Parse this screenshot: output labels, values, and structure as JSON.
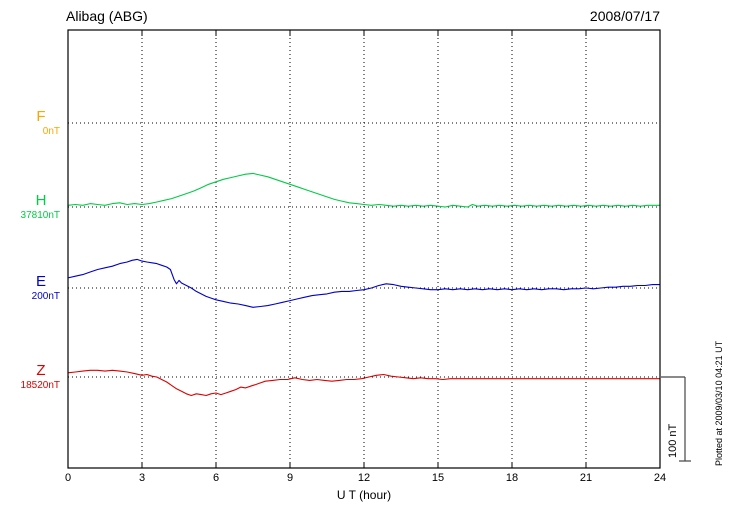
{
  "header": {
    "title": "Alibag (ABG)",
    "date": "2008/07/17"
  },
  "footer": {
    "plotted_at": "Plotted at 2009/03/10 04:21 UT"
  },
  "chart_data": {
    "type": "line",
    "title": "Alibag (ABG)",
    "date": "2008/07/17",
    "xlabel": "U T (hour)",
    "xlim": [
      0,
      24
    ],
    "x_ticks": [
      0,
      3,
      6,
      9,
      12,
      15,
      18,
      21,
      24
    ],
    "grid": "dotted",
    "scale_bar": {
      "label": "100 nT",
      "nT": 100
    },
    "unit": "nT offset from baseline",
    "series": [
      {
        "name": "F",
        "baseline_label": "0nT",
        "color": "#ffa500",
        "trace_visible": false,
        "points": []
      },
      {
        "name": "H",
        "baseline_label": "37810nT",
        "color": "#00cc44",
        "trace_visible": true,
        "points": [
          [
            0,
            2
          ],
          [
            0.3,
            3
          ],
          [
            0.6,
            2
          ],
          [
            0.9,
            4
          ],
          [
            1.2,
            3
          ],
          [
            1.5,
            2
          ],
          [
            1.8,
            4
          ],
          [
            2.1,
            5
          ],
          [
            2.4,
            3
          ],
          [
            2.7,
            4
          ],
          [
            3,
            3
          ],
          [
            3.3,
            4
          ],
          [
            3.6,
            6
          ],
          [
            3.9,
            8
          ],
          [
            4.2,
            10
          ],
          [
            4.5,
            13
          ],
          [
            4.8,
            16
          ],
          [
            5.1,
            19
          ],
          [
            5.4,
            23
          ],
          [
            5.7,
            27
          ],
          [
            6,
            30
          ],
          [
            6.3,
            33
          ],
          [
            6.6,
            35
          ],
          [
            6.9,
            37
          ],
          [
            7.2,
            39
          ],
          [
            7.5,
            40
          ],
          [
            7.8,
            38
          ],
          [
            8.1,
            36
          ],
          [
            8.4,
            33
          ],
          [
            8.7,
            30
          ],
          [
            9,
            27
          ],
          [
            9.3,
            24
          ],
          [
            9.6,
            21
          ],
          [
            9.9,
            18
          ],
          [
            10.2,
            15
          ],
          [
            10.5,
            12
          ],
          [
            10.8,
            9
          ],
          [
            11.1,
            7
          ],
          [
            11.4,
            5
          ],
          [
            11.7,
            4
          ],
          [
            12,
            3
          ],
          [
            12.3,
            2
          ],
          [
            12.6,
            3
          ],
          [
            12.9,
            2
          ],
          [
            13.2,
            1
          ],
          [
            13.5,
            2
          ],
          [
            13.8,
            1
          ],
          [
            14.1,
            2
          ],
          [
            14.4,
            1
          ],
          [
            14.7,
            2
          ],
          [
            15,
            1
          ],
          [
            15.3,
            0
          ],
          [
            15.6,
            2
          ],
          [
            15.9,
            1
          ],
          [
            16.2,
            0
          ],
          [
            16.4,
            3
          ],
          [
            16.6,
            1
          ],
          [
            16.9,
            2
          ],
          [
            17.2,
            1
          ],
          [
            17.5,
            2
          ],
          [
            17.8,
            1
          ],
          [
            18.1,
            2
          ],
          [
            18.4,
            1
          ],
          [
            18.7,
            2
          ],
          [
            19,
            1
          ],
          [
            19.3,
            2
          ],
          [
            19.6,
            1
          ],
          [
            19.9,
            2
          ],
          [
            20.2,
            1
          ],
          [
            20.5,
            2
          ],
          [
            20.8,
            1
          ],
          [
            21.1,
            2
          ],
          [
            21.4,
            1
          ],
          [
            21.7,
            2
          ],
          [
            22,
            1
          ],
          [
            22.3,
            2
          ],
          [
            22.6,
            1
          ],
          [
            22.9,
            2
          ],
          [
            23.2,
            1
          ],
          [
            23.5,
            2
          ],
          [
            23.8,
            2
          ],
          [
            24,
            2
          ]
        ]
      },
      {
        "name": "E",
        "baseline_label": "200nT",
        "color": "#0000cc",
        "trace_visible": true,
        "points": [
          [
            0,
            12
          ],
          [
            0.3,
            14
          ],
          [
            0.6,
            16
          ],
          [
            0.9,
            19
          ],
          [
            1.2,
            22
          ],
          [
            1.5,
            24
          ],
          [
            1.8,
            26
          ],
          [
            2.1,
            29
          ],
          [
            2.4,
            31
          ],
          [
            2.6,
            33
          ],
          [
            2.8,
            34
          ],
          [
            3,
            32
          ],
          [
            3.2,
            31
          ],
          [
            3.4,
            30
          ],
          [
            3.6,
            29
          ],
          [
            3.8,
            27
          ],
          [
            4,
            25
          ],
          [
            4.15,
            22
          ],
          [
            4.3,
            10
          ],
          [
            4.4,
            5
          ],
          [
            4.5,
            9
          ],
          [
            4.6,
            6
          ],
          [
            4.8,
            3
          ],
          [
            5,
            0
          ],
          [
            5.2,
            -4
          ],
          [
            5.4,
            -7
          ],
          [
            5.6,
            -10
          ],
          [
            5.8,
            -12
          ],
          [
            6,
            -14
          ],
          [
            6.3,
            -16
          ],
          [
            6.6,
            -18
          ],
          [
            6.9,
            -19
          ],
          [
            7.2,
            -21
          ],
          [
            7.5,
            -23
          ],
          [
            7.8,
            -22
          ],
          [
            8.1,
            -21
          ],
          [
            8.4,
            -19
          ],
          [
            8.7,
            -17
          ],
          [
            9,
            -15
          ],
          [
            9.3,
            -13
          ],
          [
            9.6,
            -11
          ],
          [
            9.9,
            -9
          ],
          [
            10.2,
            -8
          ],
          [
            10.5,
            -7
          ],
          [
            10.8,
            -5
          ],
          [
            11.1,
            -4
          ],
          [
            11.4,
            -4
          ],
          [
            11.7,
            -3
          ],
          [
            12,
            -2
          ],
          [
            12.3,
            0
          ],
          [
            12.6,
            3
          ],
          [
            12.9,
            5
          ],
          [
            13.2,
            4
          ],
          [
            13.5,
            2
          ],
          [
            13.8,
            1
          ],
          [
            14.1,
            0
          ],
          [
            14.4,
            -1
          ],
          [
            14.7,
            -2
          ],
          [
            15,
            -2
          ],
          [
            15.3,
            -1
          ],
          [
            15.6,
            -2
          ],
          [
            15.9,
            -1
          ],
          [
            16.2,
            -2
          ],
          [
            16.5,
            -1
          ],
          [
            16.8,
            -2
          ],
          [
            17.1,
            -1
          ],
          [
            17.4,
            -2
          ],
          [
            17.7,
            -1
          ],
          [
            18,
            -2
          ],
          [
            18.3,
            -1
          ],
          [
            18.6,
            -2
          ],
          [
            18.9,
            -1
          ],
          [
            19.2,
            -2
          ],
          [
            19.5,
            -1
          ],
          [
            19.8,
            -1
          ],
          [
            20.1,
            -2
          ],
          [
            20.4,
            -1
          ],
          [
            20.7,
            -1
          ],
          [
            21,
            0
          ],
          [
            21.3,
            -1
          ],
          [
            21.6,
            0
          ],
          [
            21.9,
            1
          ],
          [
            22.2,
            1
          ],
          [
            22.5,
            2
          ],
          [
            22.8,
            2
          ],
          [
            23.1,
            3
          ],
          [
            23.4,
            3
          ],
          [
            23.7,
            4
          ],
          [
            24,
            4
          ]
        ]
      },
      {
        "name": "Z",
        "baseline_label": "18520nT",
        "color": "#dd0000",
        "trace_visible": true,
        "points": [
          [
            0,
            5
          ],
          [
            0.3,
            6
          ],
          [
            0.6,
            7
          ],
          [
            0.9,
            8
          ],
          [
            1.2,
            8
          ],
          [
            1.5,
            7
          ],
          [
            1.8,
            8
          ],
          [
            2.1,
            7
          ],
          [
            2.4,
            6
          ],
          [
            2.7,
            4
          ],
          [
            3,
            2
          ],
          [
            3.2,
            3
          ],
          [
            3.4,
            1
          ],
          [
            3.6,
            0
          ],
          [
            3.8,
            -3
          ],
          [
            4,
            -6
          ],
          [
            4.2,
            -10
          ],
          [
            4.4,
            -14
          ],
          [
            4.6,
            -17
          ],
          [
            4.8,
            -20
          ],
          [
            5,
            -22
          ],
          [
            5.2,
            -20
          ],
          [
            5.4,
            -21
          ],
          [
            5.6,
            -22
          ],
          [
            5.8,
            -20
          ],
          [
            6,
            -19
          ],
          [
            6.2,
            -21
          ],
          [
            6.4,
            -19
          ],
          [
            6.6,
            -17
          ],
          [
            6.8,
            -15
          ],
          [
            7,
            -12
          ],
          [
            7.2,
            -13
          ],
          [
            7.4,
            -11
          ],
          [
            7.6,
            -9
          ],
          [
            7.8,
            -7
          ],
          [
            8,
            -5
          ],
          [
            8.3,
            -4
          ],
          [
            8.6,
            -3
          ],
          [
            8.9,
            -3
          ],
          [
            9.2,
            -1
          ],
          [
            9.5,
            -3
          ],
          [
            9.8,
            -4
          ],
          [
            10.1,
            -3
          ],
          [
            10.4,
            -4
          ],
          [
            10.7,
            -5
          ],
          [
            11,
            -4
          ],
          [
            11.3,
            -3
          ],
          [
            11.6,
            -3
          ],
          [
            11.9,
            -2
          ],
          [
            12.2,
            0
          ],
          [
            12.5,
            2
          ],
          [
            12.8,
            3
          ],
          [
            13.1,
            1
          ],
          [
            13.4,
            0
          ],
          [
            13.7,
            -1
          ],
          [
            14,
            -2
          ],
          [
            14.3,
            -1
          ],
          [
            14.6,
            -2
          ],
          [
            14.9,
            -2
          ],
          [
            15.2,
            -3
          ],
          [
            15.5,
            -2
          ],
          [
            15.8,
            -2
          ],
          [
            16.1,
            -2
          ],
          [
            16.4,
            -2
          ],
          [
            16.7,
            -2
          ],
          [
            17,
            -2
          ],
          [
            17.3,
            -2
          ],
          [
            17.6,
            -2
          ],
          [
            17.9,
            -2
          ],
          [
            18.2,
            -2
          ],
          [
            18.5,
            -2
          ],
          [
            18.8,
            -2
          ],
          [
            19.1,
            -2
          ],
          [
            19.4,
            -2
          ],
          [
            19.7,
            -2
          ],
          [
            20,
            -2
          ],
          [
            20.3,
            -2
          ],
          [
            20.6,
            -2
          ],
          [
            20.9,
            -2
          ],
          [
            21.2,
            -2
          ],
          [
            21.5,
            -2
          ],
          [
            21.8,
            -2
          ],
          [
            22.1,
            -2
          ],
          [
            22.4,
            -2
          ],
          [
            22.7,
            -2
          ],
          [
            23,
            -2
          ],
          [
            23.3,
            -2
          ],
          [
            23.6,
            -2
          ],
          [
            24,
            -2
          ]
        ]
      }
    ],
    "colors": {
      "frame": "#000000",
      "grid": "#000000",
      "scale_bar": "#444444"
    }
  }
}
